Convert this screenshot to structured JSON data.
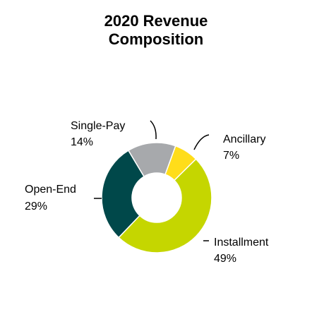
{
  "chart_data": {
    "type": "pie",
    "title": "2020 Revenue Composition",
    "title_lines": [
      "2020 Revenue",
      "Composition"
    ],
    "donut": true,
    "slices": [
      {
        "label": "Ancillary",
        "value": 7,
        "value_label": "7%",
        "color": "#FFDD1A"
      },
      {
        "label": "Installment",
        "value": 49,
        "value_label": "49%",
        "color": "#C5D600"
      },
      {
        "label": "Open-End",
        "value": 29,
        "value_label": "29%",
        "color": "#00484A"
      },
      {
        "label": "Single-Pay",
        "value": 14,
        "value_label": "14%",
        "color": "#A7A9AC"
      }
    ]
  }
}
